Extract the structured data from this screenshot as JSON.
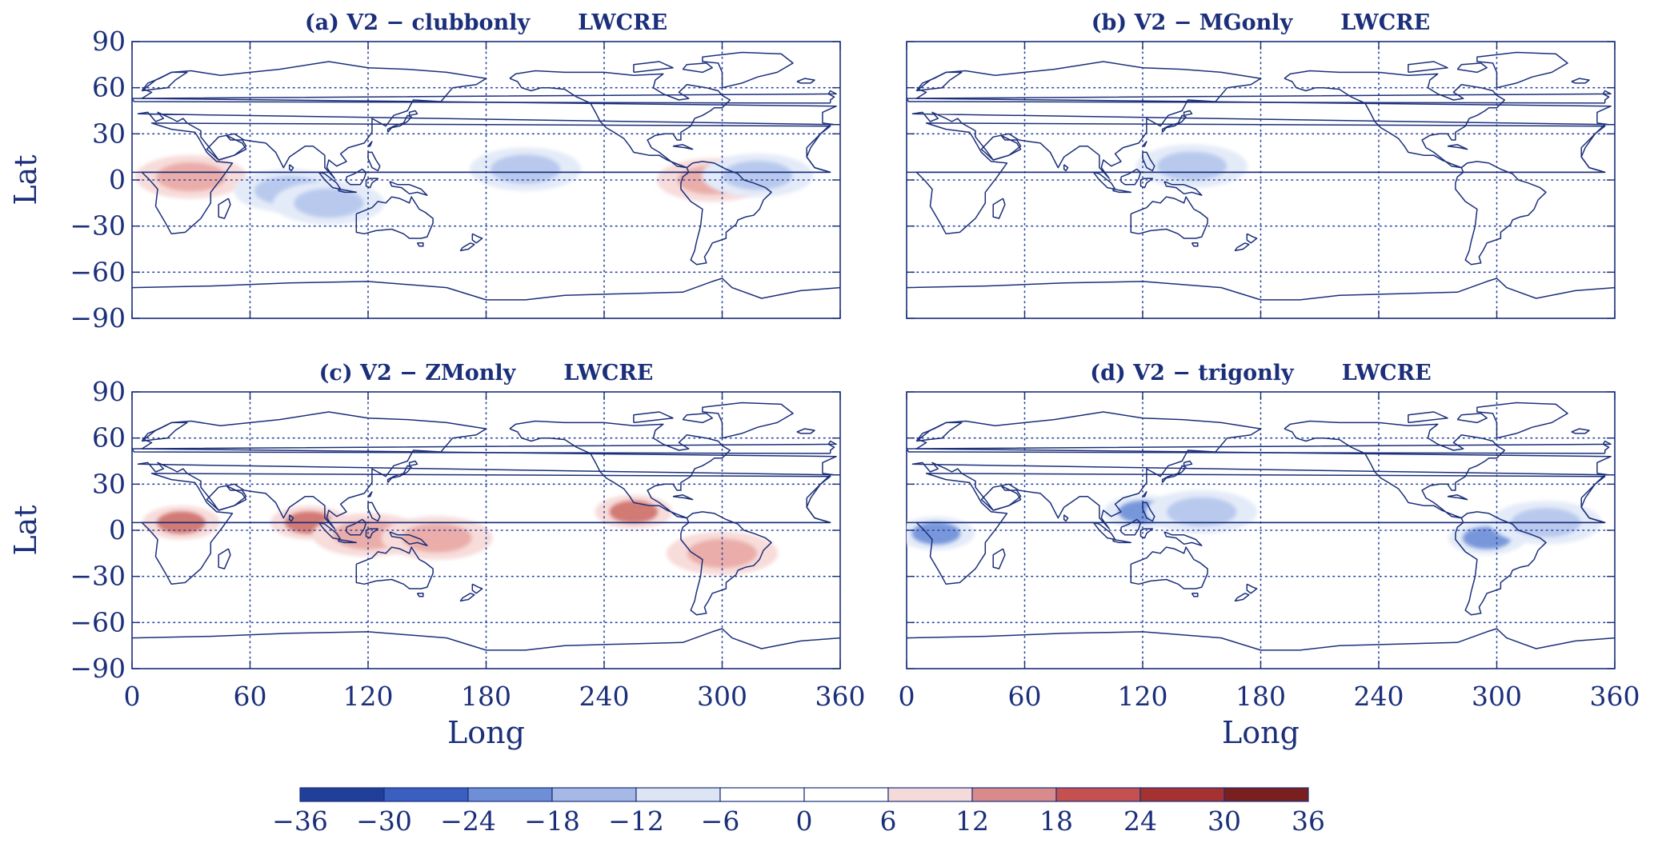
{
  "figure": {
    "panels": [
      {
        "id": "a",
        "title": "(a) V2 − clubbonly",
        "variable": "LWCRE",
        "ylabel": "Lat",
        "xlabel": "",
        "show_xticks": false,
        "show_yticks": true
      },
      {
        "id": "b",
        "title": "(b) V2 − MGonly",
        "variable": "LWCRE",
        "ylabel": "",
        "xlabel": "",
        "show_xticks": false,
        "show_yticks": false
      },
      {
        "id": "c",
        "title": "(c) V2 − ZMonly",
        "variable": "LWCRE",
        "ylabel": "Lat",
        "xlabel": "Long",
        "show_xticks": true,
        "show_yticks": true
      },
      {
        "id": "d",
        "title": "(d) V2 − trigonly",
        "variable": "LWCRE",
        "ylabel": "",
        "xlabel": "Long",
        "show_xticks": true,
        "show_yticks": false
      }
    ],
    "x_ticks": [
      "0",
      "60",
      "120",
      "180",
      "240",
      "300",
      "360"
    ],
    "y_ticks": [
      "90",
      "60",
      "30",
      "0",
      "−30",
      "−60",
      "−90"
    ],
    "colorbar": {
      "levels": [
        "−36",
        "−30",
        "−24",
        "−18",
        "−12",
        "−6",
        "0",
        "6",
        "12",
        "18",
        "24",
        "30",
        "36"
      ],
      "colors": [
        "#1f3f99",
        "#3a5fc0",
        "#6e8ed6",
        "#a6b9e6",
        "#dde5f5",
        "#ffffff",
        "#ffffff",
        "#f5dada",
        "#d98b8b",
        "#c55050",
        "#a53131",
        "#7a1f1f"
      ]
    },
    "style": {
      "axis_color": "#1b2f7a",
      "coast_color": "#1b2f7a",
      "grid_color": "#2a44a0",
      "positive_color": "#e9a9a4",
      "negative_color": "#b4c6ec"
    }
  },
  "chart_data": [
    {
      "type": "heatmap",
      "title": "(a) V2 − clubbonly",
      "variable": "LWCRE",
      "xlabel": "",
      "ylabel": "Lat",
      "xlim": [
        0,
        360
      ],
      "ylim": [
        -90,
        90
      ],
      "levels": [
        -36,
        -30,
        -24,
        -18,
        -12,
        -6,
        0,
        6,
        12,
        18,
        24,
        30,
        36
      ],
      "grid": true,
      "anomalies": [
        {
          "lon": 30,
          "lat": 2,
          "value": 7
        },
        {
          "lon": 80,
          "lat": -7,
          "value": -7
        },
        {
          "lon": 100,
          "lat": -15,
          "value": -7
        },
        {
          "lon": 200,
          "lat": 7,
          "value": -7
        },
        {
          "lon": 295,
          "lat": 0,
          "value": 8
        },
        {
          "lon": 318,
          "lat": 3,
          "value": -7
        }
      ]
    },
    {
      "type": "heatmap",
      "title": "(b) V2 − MGonly",
      "variable": "LWCRE",
      "xlabel": "",
      "ylabel": "",
      "xlim": [
        0,
        360
      ],
      "ylim": [
        -90,
        90
      ],
      "levels": [
        -36,
        -30,
        -24,
        -18,
        -12,
        -6,
        0,
        6,
        12,
        18,
        24,
        30,
        36
      ],
      "grid": true,
      "anomalies": [
        {
          "lon": 145,
          "lat": 9,
          "value": -7
        }
      ]
    },
    {
      "type": "heatmap",
      "title": "(c) V2 − ZMonly",
      "variable": "LWCRE",
      "xlabel": "Long",
      "ylabel": "Lat",
      "xlim": [
        0,
        360
      ],
      "ylim": [
        -90,
        90
      ],
      "levels": [
        -36,
        -30,
        -24,
        -18,
        -12,
        -6,
        0,
        6,
        12,
        18,
        24,
        30,
        36
      ],
      "grid": true,
      "anomalies": [
        {
          "lon": 25,
          "lat": 5,
          "value": 14
        },
        {
          "lon": 90,
          "lat": 5,
          "value": 14
        },
        {
          "lon": 120,
          "lat": -3,
          "value": 8
        },
        {
          "lon": 155,
          "lat": -5,
          "value": 8
        },
        {
          "lon": 255,
          "lat": 12,
          "value": 14
        },
        {
          "lon": 300,
          "lat": -15,
          "value": 8
        }
      ]
    },
    {
      "type": "heatmap",
      "title": "(d) V2 − trigonly",
      "variable": "LWCRE",
      "xlabel": "Long",
      "ylabel": "",
      "xlim": [
        0,
        360
      ],
      "ylim": [
        -90,
        90
      ],
      "levels": [
        -36,
        -30,
        -24,
        -18,
        -12,
        -6,
        0,
        6,
        12,
        18,
        24,
        30,
        36
      ],
      "grid": true,
      "anomalies": [
        {
          "lon": 15,
          "lat": -2,
          "value": -14
        },
        {
          "lon": 120,
          "lat": 12,
          "value": -14
        },
        {
          "lon": 150,
          "lat": 12,
          "value": -7
        },
        {
          "lon": 295,
          "lat": -5,
          "value": -14
        },
        {
          "lon": 325,
          "lat": 5,
          "value": -7
        }
      ]
    }
  ]
}
